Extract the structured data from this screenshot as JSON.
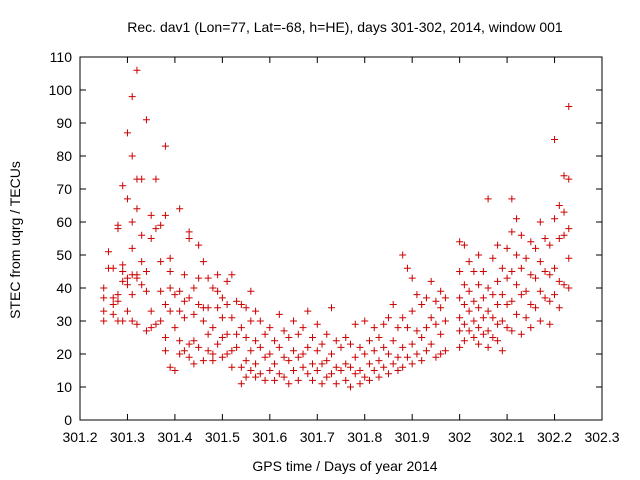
{
  "chart_data": {
    "type": "scatter",
    "title": "Rec. dav1 (Lon=77, Lat=-68, h=HE), days 301-302, 2014, window 001",
    "xlabel": "GPS time / Days of year 2014",
    "ylabel": "STEC from uqrg / TECUs",
    "xlim": [
      301.2,
      302.3
    ],
    "ylim": [
      0,
      110
    ],
    "xticks": [
      "301.2",
      "301.3",
      "301.4",
      "301.5",
      "301.6",
      "301.7",
      "301.8",
      "301.9",
      "302",
      "302.1",
      "302.2",
      "302.3"
    ],
    "yticks": [
      "0",
      "10",
      "20",
      "30",
      "40",
      "50",
      "60",
      "70",
      "80",
      "90",
      "100",
      "110"
    ],
    "grid": false,
    "legend": "none",
    "marker": "plus",
    "color": "#cc0000",
    "points": [
      [
        301.25,
        40
      ],
      [
        301.25,
        37
      ],
      [
        301.25,
        33
      ],
      [
        301.25,
        30
      ],
      [
        301.26,
        46
      ],
      [
        301.26,
        51
      ],
      [
        301.27,
        46
      ],
      [
        301.27,
        37
      ],
      [
        301.27,
        35
      ],
      [
        301.27,
        32
      ],
      [
        301.28,
        59
      ],
      [
        301.28,
        58
      ],
      [
        301.28,
        38
      ],
      [
        301.28,
        36
      ],
      [
        301.28,
        30
      ],
      [
        301.29,
        71
      ],
      [
        301.29,
        45
      ],
      [
        301.29,
        47
      ],
      [
        301.29,
        42
      ],
      [
        301.29,
        30
      ],
      [
        301.3,
        87
      ],
      [
        301.3,
        67
      ],
      [
        301.3,
        43
      ],
      [
        301.3,
        41
      ],
      [
        301.3,
        33
      ],
      [
        301.31,
        98
      ],
      [
        301.31,
        80
      ],
      [
        301.31,
        60
      ],
      [
        301.31,
        52
      ],
      [
        301.31,
        44
      ],
      [
        301.31,
        38
      ],
      [
        301.31,
        30
      ],
      [
        301.32,
        106
      ],
      [
        301.32,
        73
      ],
      [
        301.32,
        64
      ],
      [
        301.32,
        44
      ],
      [
        301.32,
        43
      ],
      [
        301.32,
        29
      ],
      [
        301.33,
        73
      ],
      [
        301.33,
        56
      ],
      [
        301.33,
        48
      ],
      [
        301.33,
        41
      ],
      [
        301.34,
        91
      ],
      [
        301.34,
        45
      ],
      [
        301.34,
        39
      ],
      [
        301.34,
        27
      ],
      [
        301.35,
        62
      ],
      [
        301.35,
        55
      ],
      [
        301.35,
        33
      ],
      [
        301.35,
        28
      ],
      [
        301.36,
        73
      ],
      [
        301.36,
        58
      ],
      [
        301.36,
        29
      ],
      [
        301.37,
        59
      ],
      [
        301.37,
        48
      ],
      [
        301.37,
        39
      ],
      [
        301.37,
        30
      ],
      [
        301.38,
        83
      ],
      [
        301.38,
        62
      ],
      [
        301.38,
        35
      ],
      [
        301.38,
        25
      ],
      [
        301.38,
        21
      ],
      [
        301.39,
        49
      ],
      [
        301.39,
        45
      ],
      [
        301.39,
        40
      ],
      [
        301.39,
        33
      ],
      [
        301.39,
        16
      ],
      [
        301.4,
        38
      ],
      [
        301.4,
        28
      ],
      [
        301.4,
        15
      ],
      [
        301.41,
        64
      ],
      [
        301.41,
        39
      ],
      [
        301.41,
        33
      ],
      [
        301.41,
        24
      ],
      [
        301.41,
        20
      ],
      [
        301.42,
        44
      ],
      [
        301.42,
        36
      ],
      [
        301.42,
        31
      ],
      [
        301.42,
        21
      ],
      [
        301.43,
        57
      ],
      [
        301.43,
        55
      ],
      [
        301.43,
        37
      ],
      [
        301.43,
        23
      ],
      [
        301.43,
        19
      ],
      [
        301.44,
        40
      ],
      [
        301.44,
        32
      ],
      [
        301.44,
        24
      ],
      [
        301.44,
        17
      ],
      [
        301.45,
        53
      ],
      [
        301.45,
        43
      ],
      [
        301.45,
        35
      ],
      [
        301.45,
        22
      ],
      [
        301.46,
        48
      ],
      [
        301.46,
        34
      ],
      [
        301.46,
        30
      ],
      [
        301.46,
        18
      ],
      [
        301.47,
        43
      ],
      [
        301.47,
        34
      ],
      [
        301.47,
        26
      ],
      [
        301.47,
        21
      ],
      [
        301.48,
        40
      ],
      [
        301.48,
        28
      ],
      [
        301.48,
        20
      ],
      [
        301.48,
        18
      ],
      [
        301.49,
        44
      ],
      [
        301.49,
        39
      ],
      [
        301.49,
        34
      ],
      [
        301.49,
        23
      ],
      [
        301.5,
        37
      ],
      [
        301.5,
        31
      ],
      [
        301.5,
        25
      ],
      [
        301.5,
        19
      ],
      [
        301.51,
        42
      ],
      [
        301.51,
        35
      ],
      [
        301.51,
        26
      ],
      [
        301.51,
        20
      ],
      [
        301.52,
        44
      ],
      [
        301.52,
        31
      ],
      [
        301.52,
        21
      ],
      [
        301.52,
        16
      ],
      [
        301.53,
        36
      ],
      [
        301.53,
        26
      ],
      [
        301.53,
        22
      ],
      [
        301.54,
        35
      ],
      [
        301.54,
        28
      ],
      [
        301.54,
        16
      ],
      [
        301.54,
        11
      ],
      [
        301.55,
        34
      ],
      [
        301.55,
        25
      ],
      [
        301.55,
        18
      ],
      [
        301.55,
        13
      ],
      [
        301.56,
        39
      ],
      [
        301.56,
        30
      ],
      [
        301.56,
        21
      ],
      [
        301.56,
        15
      ],
      [
        301.57,
        33
      ],
      [
        301.57,
        24
      ],
      [
        301.57,
        17
      ],
      [
        301.57,
        13
      ],
      [
        301.58,
        30
      ],
      [
        301.58,
        22
      ],
      [
        301.58,
        14
      ],
      [
        301.59,
        26
      ],
      [
        301.59,
        19
      ],
      [
        301.59,
        12
      ],
      [
        301.6,
        28
      ],
      [
        301.6,
        20
      ],
      [
        301.6,
        15
      ],
      [
        301.61,
        24
      ],
      [
        301.61,
        17
      ],
      [
        301.61,
        12
      ],
      [
        301.62,
        32
      ],
      [
        301.62,
        22
      ],
      [
        301.62,
        14
      ],
      [
        301.63,
        27
      ],
      [
        301.63,
        19
      ],
      [
        301.63,
        13
      ],
      [
        301.64,
        25
      ],
      [
        301.64,
        18
      ],
      [
        301.64,
        11
      ],
      [
        301.65,
        30
      ],
      [
        301.65,
        21
      ],
      [
        301.65,
        15
      ],
      [
        301.66,
        26
      ],
      [
        301.66,
        19
      ],
      [
        301.66,
        12
      ],
      [
        301.67,
        28
      ],
      [
        301.67,
        20
      ],
      [
        301.67,
        16
      ],
      [
        301.68,
        33
      ],
      [
        301.68,
        22
      ],
      [
        301.68,
        14
      ],
      [
        301.69,
        25
      ],
      [
        301.69,
        17
      ],
      [
        301.69,
        12
      ],
      [
        301.7,
        29
      ],
      [
        301.7,
        21
      ],
      [
        301.7,
        15
      ],
      [
        301.71,
        23
      ],
      [
        301.71,
        17
      ],
      [
        301.71,
        11
      ],
      [
        301.72,
        26
      ],
      [
        301.72,
        18
      ],
      [
        301.72,
        13
      ],
      [
        301.73,
        34
      ],
      [
        301.73,
        20
      ],
      [
        301.73,
        14
      ],
      [
        301.74,
        24
      ],
      [
        301.74,
        16
      ],
      [
        301.74,
        11
      ],
      [
        301.75,
        22
      ],
      [
        301.75,
        15
      ],
      [
        301.76,
        25
      ],
      [
        301.76,
        17
      ],
      [
        301.76,
        12
      ],
      [
        301.77,
        23
      ],
      [
        301.77,
        16
      ],
      [
        301.77,
        10
      ],
      [
        301.78,
        29
      ],
      [
        301.78,
        19
      ],
      [
        301.78,
        14
      ],
      [
        301.79,
        22
      ],
      [
        301.79,
        15
      ],
      [
        301.79,
        11
      ],
      [
        301.8,
        30
      ],
      [
        301.8,
        20
      ],
      [
        301.8,
        13
      ],
      [
        301.81,
        24
      ],
      [
        301.81,
        17
      ],
      [
        301.81,
        12
      ],
      [
        301.82,
        28
      ],
      [
        301.82,
        21
      ],
      [
        301.82,
        15
      ],
      [
        301.83,
        25
      ],
      [
        301.83,
        18
      ],
      [
        301.83,
        13
      ],
      [
        301.84,
        29
      ],
      [
        301.84,
        22
      ],
      [
        301.84,
        16
      ],
      [
        301.85,
        31
      ],
      [
        301.85,
        20
      ],
      [
        301.85,
        14
      ],
      [
        301.86,
        35
      ],
      [
        301.86,
        24
      ],
      [
        301.86,
        17
      ],
      [
        301.87,
        28
      ],
      [
        301.87,
        19
      ],
      [
        301.87,
        15
      ],
      [
        301.88,
        50
      ],
      [
        301.88,
        31
      ],
      [
        301.88,
        22
      ],
      [
        301.88,
        16
      ],
      [
        301.89,
        46
      ],
      [
        301.89,
        28
      ],
      [
        301.89,
        19
      ],
      [
        301.9,
        43
      ],
      [
        301.9,
        33
      ],
      [
        301.9,
        23
      ],
      [
        301.9,
        17
      ],
      [
        301.91,
        38
      ],
      [
        301.91,
        27
      ],
      [
        301.91,
        20
      ],
      [
        301.92,
        35
      ],
      [
        301.92,
        25
      ],
      [
        301.92,
        18
      ],
      [
        301.93,
        37
      ],
      [
        301.93,
        28
      ],
      [
        301.93,
        21
      ],
      [
        301.94,
        42
      ],
      [
        301.94,
        31
      ],
      [
        301.94,
        23
      ],
      [
        301.95,
        36
      ],
      [
        301.95,
        29
      ],
      [
        301.95,
        19
      ],
      [
        301.96,
        39
      ],
      [
        301.96,
        34
      ],
      [
        301.96,
        26
      ],
      [
        301.96,
        20
      ],
      [
        301.97,
        37
      ],
      [
        301.97,
        30
      ],
      [
        301.97,
        21
      ],
      [
        302.0,
        54
      ],
      [
        302.0,
        45
      ],
      [
        302.0,
        37
      ],
      [
        302.0,
        31
      ],
      [
        302.0,
        27
      ],
      [
        302.0,
        22
      ],
      [
        302.01,
        53
      ],
      [
        302.01,
        41
      ],
      [
        302.01,
        35
      ],
      [
        302.01,
        29
      ],
      [
        302.01,
        24
      ],
      [
        302.02,
        48
      ],
      [
        302.02,
        39
      ],
      [
        302.02,
        33
      ],
      [
        302.02,
        27
      ],
      [
        302.03,
        45
      ],
      [
        302.03,
        36
      ],
      [
        302.03,
        30
      ],
      [
        302.03,
        25
      ],
      [
        302.04,
        50
      ],
      [
        302.04,
        41
      ],
      [
        302.04,
        34
      ],
      [
        302.04,
        28
      ],
      [
        302.04,
        23
      ],
      [
        302.05,
        45
      ],
      [
        302.05,
        37
      ],
      [
        302.05,
        31
      ],
      [
        302.05,
        26
      ],
      [
        302.06,
        67
      ],
      [
        302.06,
        40
      ],
      [
        302.06,
        33
      ],
      [
        302.06,
        27
      ],
      [
        302.06,
        22
      ],
      [
        302.07,
        49
      ],
      [
        302.07,
        38
      ],
      [
        302.07,
        31
      ],
      [
        302.07,
        25
      ],
      [
        302.08,
        53
      ],
      [
        302.08,
        42
      ],
      [
        302.08,
        35
      ],
      [
        302.08,
        29
      ],
      [
        302.08,
        24
      ],
      [
        302.09,
        46
      ],
      [
        302.09,
        38
      ],
      [
        302.09,
        30
      ],
      [
        302.09,
        21
      ],
      [
        302.1,
        52
      ],
      [
        302.1,
        43
      ],
      [
        302.1,
        35
      ],
      [
        302.1,
        28
      ],
      [
        302.11,
        67
      ],
      [
        302.11,
        57
      ],
      [
        302.11,
        45
      ],
      [
        302.11,
        36
      ],
      [
        302.11,
        27
      ],
      [
        302.12,
        61
      ],
      [
        302.12,
        50
      ],
      [
        302.12,
        41
      ],
      [
        302.12,
        32
      ],
      [
        302.13,
        56
      ],
      [
        302.13,
        46
      ],
      [
        302.13,
        38
      ],
      [
        302.13,
        26
      ],
      [
        302.14,
        49
      ],
      [
        302.14,
        39
      ],
      [
        302.14,
        31
      ],
      [
        302.15,
        54
      ],
      [
        302.15,
        44
      ],
      [
        302.15,
        35
      ],
      [
        302.15,
        28
      ],
      [
        302.16,
        52
      ],
      [
        302.16,
        43
      ],
      [
        302.16,
        34
      ],
      [
        302.17,
        60
      ],
      [
        302.17,
        48
      ],
      [
        302.17,
        39
      ],
      [
        302.17,
        30
      ],
      [
        302.18,
        55
      ],
      [
        302.18,
        45
      ],
      [
        302.18,
        37
      ],
      [
        302.19,
        53
      ],
      [
        302.19,
        44
      ],
      [
        302.19,
        36
      ],
      [
        302.19,
        29
      ],
      [
        302.2,
        85
      ],
      [
        302.2,
        61
      ],
      [
        302.2,
        46
      ],
      [
        302.2,
        38
      ],
      [
        302.21,
        65
      ],
      [
        302.21,
        55
      ],
      [
        302.21,
        42
      ],
      [
        302.21,
        34
      ],
      [
        302.22,
        74
      ],
      [
        302.22,
        63
      ],
      [
        302.22,
        56
      ],
      [
        302.22,
        41
      ],
      [
        302.23,
        95
      ],
      [
        302.23,
        73
      ],
      [
        302.23,
        58
      ],
      [
        302.23,
        49
      ],
      [
        302.23,
        40
      ]
    ]
  }
}
